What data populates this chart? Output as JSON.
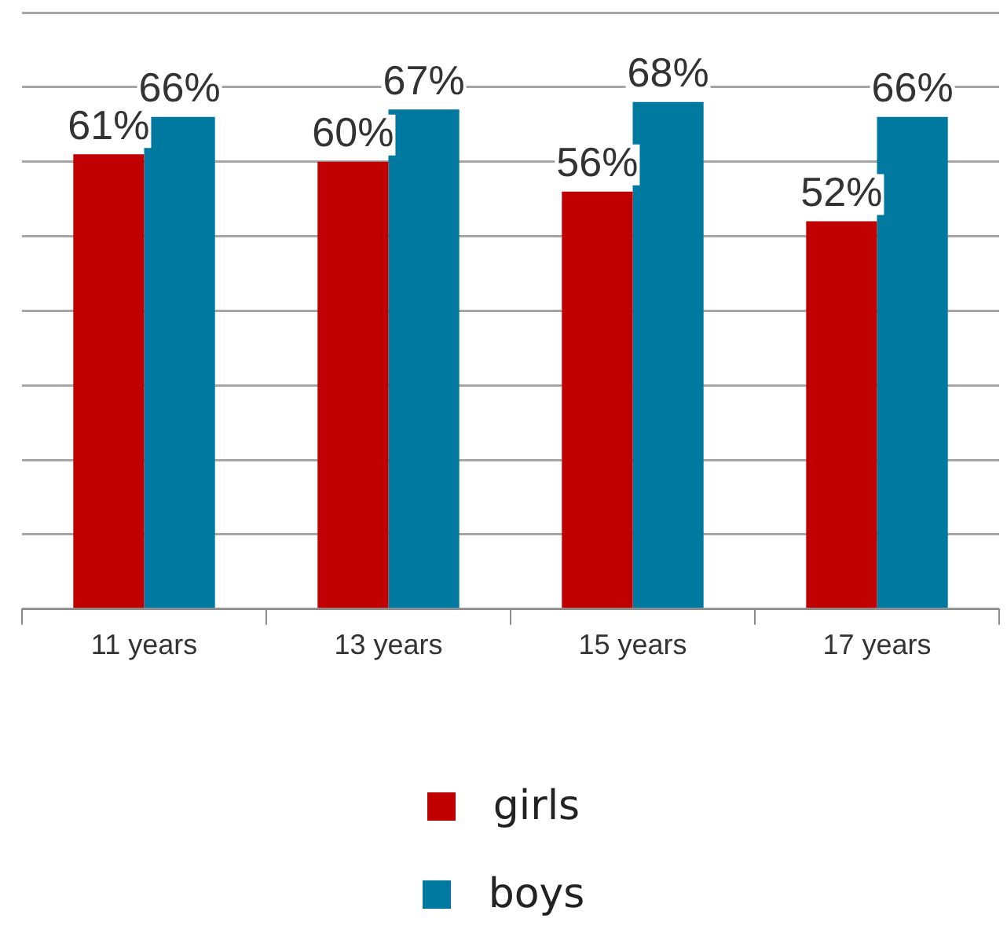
{
  "chart_data": {
    "type": "bar",
    "categories": [
      "11 years",
      "13 years",
      "15 years",
      "17 years"
    ],
    "series": [
      {
        "name": "girls",
        "color": "#c00000",
        "values": [
          61,
          60,
          56,
          52
        ],
        "value_labels": [
          "61%",
          "60%",
          "56%",
          "52%"
        ]
      },
      {
        "name": "boys",
        "color": "#0079a0",
        "values": [
          66,
          67,
          68,
          66
        ],
        "value_labels": [
          "66%",
          "67%",
          "68%",
          "66%"
        ]
      }
    ],
    "ylim": [
      0,
      80
    ],
    "yticks": [
      {
        "value": 0,
        "label": null
      },
      {
        "value": 10,
        "label": null
      },
      {
        "value": 20,
        "label": null
      },
      {
        "value": 30,
        "label": null
      },
      {
        "value": 40,
        "label": null
      },
      {
        "value": 50,
        "label": null
      },
      {
        "value": 60,
        "label": null
      },
      {
        "value": 70,
        "label": null
      },
      {
        "value": 80,
        "label": null
      }
    ],
    "tick_labels": "x",
    "grid": "y",
    "legend": "bottom"
  }
}
